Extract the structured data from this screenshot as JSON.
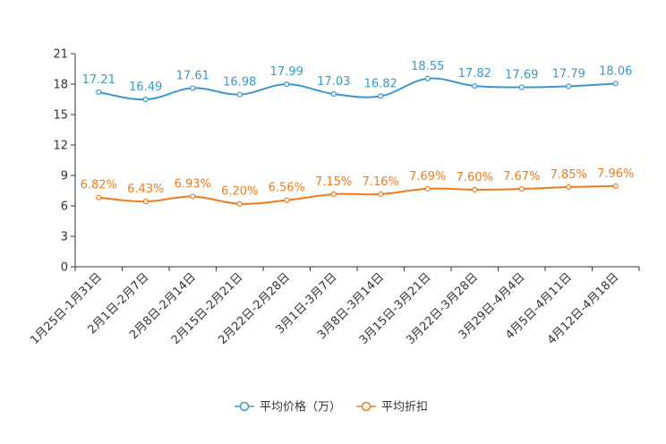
{
  "chart_data": {
    "type": "line",
    "categories": [
      "1月25日-1月31日",
      "2月1日-2月7日",
      "2月8日-2月14日",
      "2月15日-2月21日",
      "2月22日-2月28日",
      "3月1日-3月7日",
      "3月8日-3月14日",
      "3月15日-3月21日",
      "3月22日-3月28日",
      "3月29日-4月4日",
      "4月5日-4月11日",
      "4月12日-4月18日"
    ],
    "ylim": [
      0,
      21
    ],
    "yticks": [
      "0",
      "3",
      "6",
      "9",
      "12",
      "15",
      "18",
      "21"
    ],
    "series": [
      {
        "name": "平均价格（万）",
        "color": "#3a97cc",
        "values": [
          17.21,
          16.49,
          17.61,
          16.98,
          17.99,
          17.03,
          16.82,
          18.55,
          17.82,
          17.69,
          17.79,
          18.06
        ],
        "labels": [
          "17.21",
          "16.49",
          "17.61",
          "16.98",
          "17.99",
          "17.03",
          "16.82",
          "18.55",
          "17.82",
          "17.69",
          "17.79",
          "18.06"
        ]
      },
      {
        "name": "平均折扣",
        "color": "#f07a1a",
        "values": [
          6.82,
          6.43,
          6.93,
          6.2,
          6.56,
          7.15,
          7.16,
          7.69,
          7.6,
          7.67,
          7.85,
          7.96
        ],
        "labels": [
          "6.82%",
          "6.43%",
          "6.93%",
          "6.20%",
          "6.56%",
          "7.15%",
          "7.16%",
          "7.69%",
          "7.60%",
          "7.67%",
          "7.85%",
          "7.96%"
        ]
      }
    ],
    "legend": "bottom-center",
    "grid": false
  }
}
